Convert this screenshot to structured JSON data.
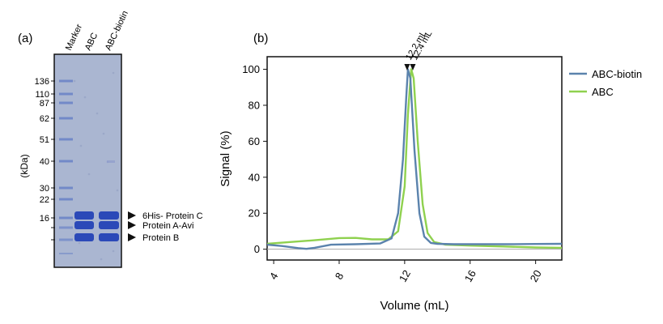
{
  "panel_a": {
    "label": "(a)",
    "lane_labels": [
      "Marker",
      "ABC",
      "ABC-biotin"
    ],
    "unit_label": "(kDa)",
    "marker_ticks": [
      "136",
      "110",
      "87",
      "62",
      "51",
      "40",
      "30",
      "22",
      "16"
    ],
    "band_annotations": [
      "6His- Protein C",
      "Protein A-Avi",
      "Protein B"
    ],
    "colors": {
      "gel_background": "#aab6d1",
      "band": "#2b49b8",
      "marker_band": "#5f79c4"
    }
  },
  "panel_b": {
    "label": "(b)",
    "peak_labels": [
      "12.2 mL",
      "12.4 mL"
    ],
    "chart_data": {
      "type": "line",
      "xlabel": "Volume (mL)",
      "ylabel": "Signal (%)",
      "xlim": [
        3.6,
        21.6
      ],
      "ylim": [
        -6,
        107
      ],
      "xticks": [
        4,
        8,
        12,
        16,
        20
      ],
      "yticks": [
        0,
        20,
        40,
        60,
        80,
        100
      ],
      "legend_position": "right",
      "series": [
        {
          "name": "ABC-biotin",
          "color": "#5b83ad",
          "x": [
            3.6,
            4.5,
            5.5,
            6.0,
            6.5,
            7.5,
            9.0,
            10.5,
            11.2,
            11.6,
            11.9,
            12.1,
            12.2,
            12.35,
            12.6,
            12.9,
            13.2,
            13.6,
            14.0,
            15.0,
            16.0,
            18.0,
            20.0,
            21.6
          ],
          "y": [
            2.5,
            1.8,
            0.6,
            0.2,
            0.8,
            2.5,
            2.8,
            3.2,
            6.0,
            20.0,
            50.0,
            85.0,
            100.0,
            95.0,
            55.0,
            20.0,
            7.0,
            3.5,
            3.0,
            2.8,
            2.8,
            2.8,
            2.9,
            3.0
          ]
        },
        {
          "name": "ABC",
          "color": "#8fd14f",
          "x": [
            3.6,
            5.0,
            6.5,
            8.0,
            9.0,
            10.0,
            11.0,
            11.6,
            12.0,
            12.2,
            12.4,
            12.55,
            12.8,
            13.1,
            13.4,
            13.8,
            14.5,
            16.0,
            18.0,
            20.0,
            21.6
          ],
          "y": [
            3.0,
            4.0,
            5.0,
            6.2,
            6.3,
            5.5,
            5.5,
            10.0,
            35.0,
            75.0,
            100.0,
            95.0,
            60.0,
            25.0,
            9.0,
            4.0,
            2.5,
            2.0,
            1.5,
            1.0,
            0.8
          ]
        }
      ]
    }
  }
}
